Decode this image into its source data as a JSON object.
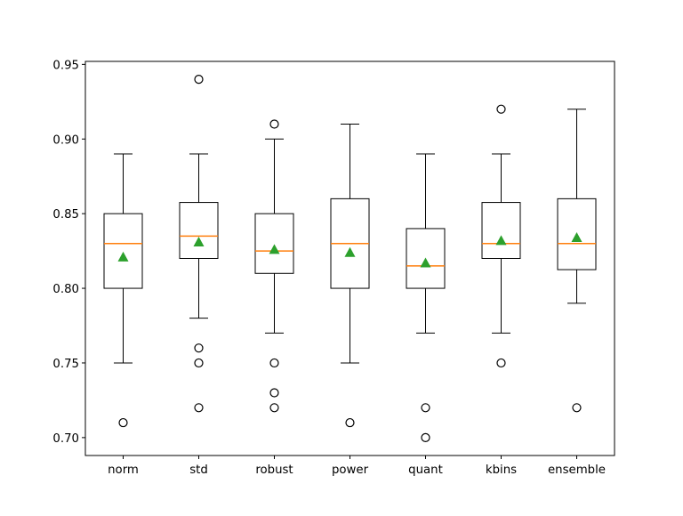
{
  "chart_data": {
    "type": "box",
    "title": "",
    "xlabel": "",
    "ylabel": "",
    "ylim": [
      0.688,
      0.952
    ],
    "yticks": [
      "0.70",
      "0.75",
      "0.80",
      "0.85",
      "0.90",
      "0.95"
    ],
    "grid": false,
    "categories": [
      "norm",
      "std",
      "robust",
      "power",
      "quant",
      "kbins",
      "ensemble"
    ],
    "boxes": [
      {
        "label": "norm",
        "whislo": 0.75,
        "q1": 0.8,
        "median": 0.83,
        "q3": 0.85,
        "whishi": 0.89,
        "mean": 0.821,
        "fliers": [
          0.71
        ]
      },
      {
        "label": "std",
        "whislo": 0.78,
        "q1": 0.82,
        "median": 0.835,
        "q3": 0.8575,
        "whishi": 0.89,
        "mean": 0.831,
        "fliers": [
          0.94,
          0.76,
          0.75,
          0.72
        ]
      },
      {
        "label": "robust",
        "whislo": 0.77,
        "q1": 0.81,
        "median": 0.825,
        "q3": 0.85,
        "whishi": 0.9,
        "mean": 0.826,
        "fliers": [
          0.91,
          0.75,
          0.73,
          0.72
        ]
      },
      {
        "label": "power",
        "whislo": 0.75,
        "q1": 0.8,
        "median": 0.83,
        "q3": 0.86,
        "whishi": 0.91,
        "mean": 0.824,
        "fliers": [
          0.71
        ]
      },
      {
        "label": "quant",
        "whislo": 0.77,
        "q1": 0.8,
        "median": 0.815,
        "q3": 0.84,
        "whishi": 0.89,
        "mean": 0.817,
        "fliers": [
          0.72,
          0.7
        ]
      },
      {
        "label": "kbins",
        "whislo": 0.77,
        "q1": 0.82,
        "median": 0.83,
        "q3": 0.8575,
        "whishi": 0.89,
        "mean": 0.832,
        "fliers": [
          0.92,
          0.75
        ]
      },
      {
        "label": "ensemble",
        "whislo": 0.79,
        "q1": 0.8125,
        "median": 0.83,
        "q3": 0.86,
        "whishi": 0.92,
        "mean": 0.834,
        "fliers": [
          0.72
        ]
      }
    ],
    "colors": {
      "box": "#000000",
      "median": "#ff7f0e",
      "mean": "#2ca02c",
      "flier": "#000000"
    }
  }
}
